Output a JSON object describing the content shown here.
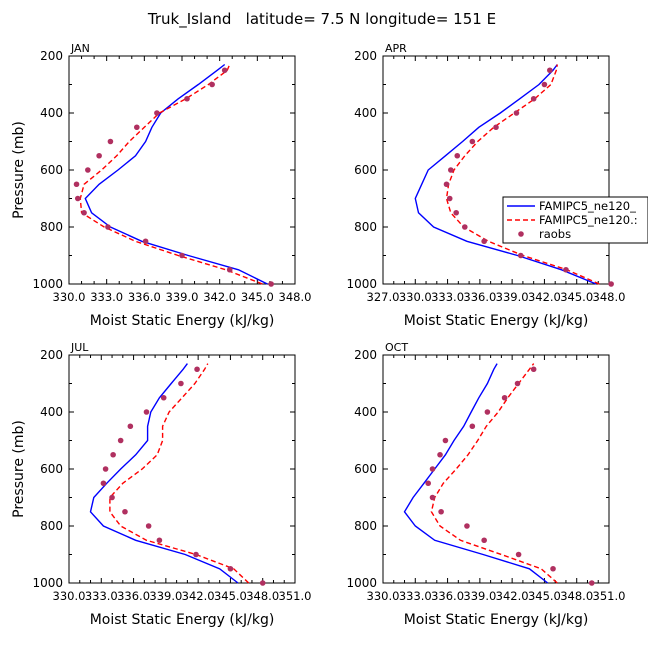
{
  "title": "Truk_Island   latitude= 7.5 N longitude= 151 E",
  "colors": {
    "model1": "#0000ff",
    "model2": "#ff0000",
    "obs": "#b03060"
  },
  "legend": {
    "panel": 1,
    "entries": [
      {
        "label": "FAMIPC5_ne120_",
        "style": "solid",
        "color": "#0000ff"
      },
      {
        "label": "FAMIPC5_ne120.:",
        "style": "dashed",
        "color": "#ff0000"
      },
      {
        "label": "raobs",
        "style": "dot",
        "color": "#b03060"
      }
    ]
  },
  "chart_data": [
    {
      "type": "line",
      "title": "JAN",
      "xlabel": "Moist Static Energy (kJ/kg)",
      "ylabel": "Pressure (mb)",
      "xlim": [
        330,
        348
      ],
      "ylim": [
        200,
        1000
      ],
      "y_reversed": true,
      "xtick_labels": [
        "330.0",
        "333.0",
        "336.0",
        "339.0",
        "342.0",
        "345.0",
        "348.0"
      ],
      "ytick_labels": [
        "200",
        "400",
        "600",
        "800",
        "1000"
      ],
      "pressure": [
        1000,
        950,
        900,
        850,
        800,
        750,
        700,
        650,
        600,
        550,
        500,
        450,
        400,
        350,
        300,
        250,
        230
      ],
      "series": [
        {
          "name": "FAMIPC5_ne120_",
          "style": "solid",
          "values": [
            345.8,
            343.5,
            339.5,
            335.8,
            333.3,
            331.8,
            331.3,
            332.4,
            333.9,
            335.3,
            336.1,
            336.6,
            337.3,
            338.7,
            340.3,
            341.8,
            342.4
          ]
        },
        {
          "name": "FAMIPC5_ne120.:",
          "style": "dashed",
          "values": [
            345.4,
            342.5,
            338.7,
            335.3,
            332.8,
            331.0,
            330.9,
            331.2,
            332.6,
            333.8,
            334.8,
            336.0,
            337.2,
            339.3,
            341.1,
            342.6,
            342.8
          ]
        },
        {
          "name": "raobs",
          "style": "dot",
          "p": [
            1000,
            950,
            900,
            850,
            800,
            750,
            700,
            650,
            600,
            550,
            500,
            450,
            400,
            350,
            300,
            250
          ],
          "values": [
            346.1,
            342.8,
            339.0,
            336.1,
            333.1,
            331.2,
            330.7,
            330.6,
            331.5,
            332.4,
            333.3,
            335.4,
            337.0,
            339.4,
            341.4,
            342.4
          ]
        }
      ]
    },
    {
      "type": "line",
      "title": "APR",
      "xlabel": "Moist Static Energy (kJ/kg)",
      "ylabel": "",
      "xlim": [
        327,
        348
      ],
      "ylim": [
        200,
        1000
      ],
      "y_reversed": true,
      "xtick_labels": [
        "327.0",
        "330.0",
        "333.0",
        "336.0",
        "339.0",
        "342.0",
        "345.0",
        "348.0"
      ],
      "ytick_labels": [
        "200",
        "400",
        "600",
        "800",
        "1000"
      ],
      "pressure": [
        1000,
        950,
        900,
        850,
        800,
        750,
        700,
        650,
        600,
        550,
        500,
        450,
        400,
        350,
        300,
        250,
        230
      ],
      "series": [
        {
          "name": "FAMIPC5_ne120_",
          "style": "solid",
          "values": [
            346.8,
            343.6,
            339.5,
            334.8,
            331.7,
            330.3,
            330.0,
            330.6,
            331.2,
            332.8,
            334.4,
            335.9,
            337.9,
            339.7,
            341.5,
            342.8,
            343.2
          ]
        },
        {
          "name": "FAMIPC5_ne120.:",
          "style": "dashed",
          "values": [
            347.1,
            344.1,
            340.0,
            336.8,
            334.5,
            333.3,
            332.9,
            333.1,
            333.6,
            334.6,
            335.8,
            337.3,
            339.2,
            341.1,
            342.6,
            343.1,
            343.2
          ]
        },
        {
          "name": "raobs",
          "style": "dot",
          "p": [
            1000,
            950,
            900,
            850,
            800,
            750,
            700,
            650,
            600,
            550,
            500,
            450,
            400,
            350,
            300,
            250
          ],
          "values": [
            348.2,
            344.0,
            339.8,
            336.4,
            334.6,
            333.8,
            333.2,
            332.9,
            333.3,
            333.9,
            335.3,
            337.5,
            339.4,
            341.0,
            342.0,
            342.5
          ]
        }
      ]
    },
    {
      "type": "line",
      "title": "JUL",
      "xlabel": "Moist Static Energy (kJ/kg)",
      "ylabel": "Pressure (mb)",
      "xlim": [
        330,
        351
      ],
      "ylim": [
        200,
        1000
      ],
      "y_reversed": true,
      "xtick_labels": [
        "330.0",
        "333.0",
        "336.0",
        "339.0",
        "342.0",
        "345.0",
        "348.0",
        "351.0"
      ],
      "ytick_labels": [
        "200",
        "400",
        "600",
        "800",
        "1000"
      ],
      "pressure": [
        1000,
        950,
        900,
        850,
        800,
        750,
        700,
        650,
        600,
        550,
        500,
        450,
        400,
        350,
        300,
        250,
        230
      ],
      "series": [
        {
          "name": "FAMIPC5_ne120_",
          "style": "solid",
          "values": [
            345.7,
            344.0,
            340.8,
            336.2,
            333.2,
            332.0,
            332.3,
            333.5,
            334.8,
            336.2,
            337.3,
            337.3,
            337.6,
            338.4,
            339.5,
            340.6,
            341.0
          ]
        },
        {
          "name": "FAMIPC5_ne120.:",
          "style": "dashed",
          "values": [
            346.7,
            345.3,
            341.8,
            337.2,
            334.8,
            333.8,
            333.8,
            335.0,
            336.8,
            338.2,
            338.7,
            338.7,
            339.3,
            340.5,
            341.7,
            342.6,
            342.9
          ]
        },
        {
          "name": "raobs",
          "style": "dot",
          "p": [
            1000,
            950,
            900,
            850,
            800,
            750,
            700,
            650,
            600,
            550,
            500,
            450,
            400,
            350,
            300,
            250
          ],
          "values": [
            348.0,
            345.0,
            341.8,
            338.4,
            337.4,
            335.2,
            334.0,
            333.2,
            333.4,
            334.1,
            334.8,
            335.7,
            337.2,
            338.8,
            340.4,
            341.9
          ]
        }
      ]
    },
    {
      "type": "line",
      "title": "OCT",
      "xlabel": "Moist Static Energy (kJ/kg)",
      "ylabel": "",
      "xlim": [
        330,
        351
      ],
      "ylim": [
        200,
        1000
      ],
      "y_reversed": true,
      "xtick_labels": [
        "330.0",
        "333.0",
        "336.0",
        "339.0",
        "342.0",
        "345.0",
        "348.0",
        "351.0"
      ],
      "ytick_labels": [
        "200",
        "400",
        "600",
        "800",
        "1000"
      ],
      "pressure": [
        1000,
        950,
        900,
        850,
        800,
        750,
        700,
        650,
        600,
        550,
        500,
        450,
        400,
        350,
        300,
        250,
        230
      ],
      "series": [
        {
          "name": "FAMIPC5_ne120_",
          "style": "solid",
          "values": [
            345.3,
            343.6,
            339.3,
            334.8,
            333.0,
            332.0,
            332.8,
            333.8,
            334.8,
            335.8,
            336.6,
            337.5,
            338.2,
            338.9,
            339.7,
            340.3,
            340.6
          ]
        },
        {
          "name": "FAMIPC5_ne120.:",
          "style": "dashed",
          "values": [
            346.2,
            344.7,
            341.0,
            337.2,
            335.3,
            334.5,
            334.8,
            335.6,
            336.8,
            337.9,
            338.8,
            339.6,
            340.7,
            341.6,
            342.6,
            343.6,
            344.0
          ]
        },
        {
          "name": "raobs",
          "style": "dot",
          "p": [
            1000,
            950,
            900,
            850,
            800,
            750,
            700,
            650,
            600,
            550,
            500,
            450,
            400,
            350,
            300,
            250
          ],
          "values": [
            349.4,
            345.8,
            342.6,
            339.4,
            337.8,
            335.4,
            334.6,
            334.2,
            334.6,
            335.3,
            335.8,
            338.3,
            339.7,
            341.3,
            342.5,
            344.0
          ]
        }
      ]
    }
  ]
}
